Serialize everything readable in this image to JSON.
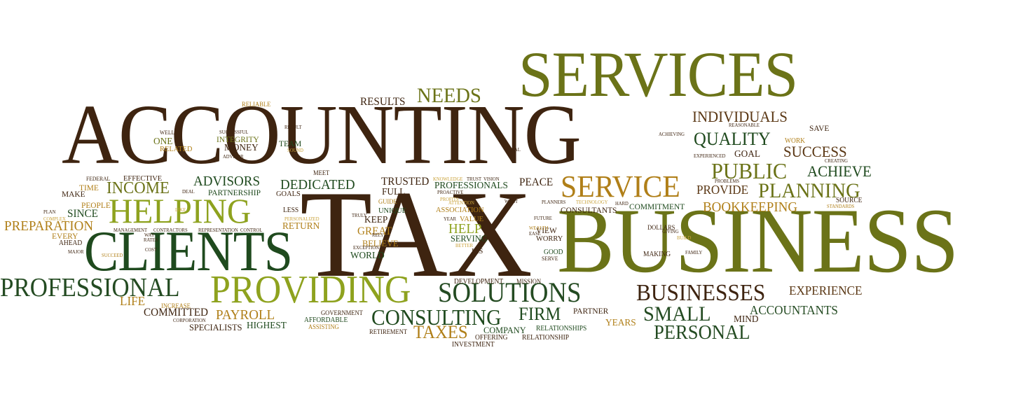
{
  "palette": {
    "dark_brown": "#3e2410",
    "olive": "#6b7318",
    "dark_green": "#1f4a1e",
    "lime": "#8ea21e",
    "gold": "#b07f18",
    "light_gold": "#c9a23a",
    "forest": "#244b22",
    "brown": "#5a3714"
  },
  "words": [
    {
      "text": "ACCOUNTING"
    },
    {
      "text": "SERVICES"
    },
    {
      "text": "TAX"
    },
    {
      "text": "BUSINESS"
    },
    {
      "text": "CLIENTS"
    },
    {
      "text": "HELPING"
    },
    {
      "text": "PROVIDING"
    },
    {
      "text": "SERVICE"
    },
    {
      "text": "SOLUTIONS"
    },
    {
      "text": "PROFESSIONAL"
    },
    {
      "text": "BUSINESSES"
    },
    {
      "text": "CONSULTING"
    },
    {
      "text": "NEEDS"
    },
    {
      "text": "PUBLIC"
    },
    {
      "text": "PLANNING"
    },
    {
      "text": "QUALITY"
    },
    {
      "text": "INDIVIDUALS"
    },
    {
      "text": "SMALL"
    },
    {
      "text": "PERSONAL"
    },
    {
      "text": "INCOME"
    },
    {
      "text": "ADVISORS"
    },
    {
      "text": "DEDICATED"
    },
    {
      "text": "SUCCESS"
    },
    {
      "text": "ACHIEVE"
    },
    {
      "text": "BOOKKEEPING"
    },
    {
      "text": "PREPARATION"
    },
    {
      "text": "TAXES"
    },
    {
      "text": "FIRM"
    },
    {
      "text": "PAYROLL"
    },
    {
      "text": "HELP"
    },
    {
      "text": "LIFE"
    },
    {
      "text": "RESULTS"
    },
    {
      "text": "EXPERIENCE"
    },
    {
      "text": "ACCOUNTANTS"
    },
    {
      "text": "PROVIDE"
    },
    {
      "text": "COMMITTED"
    },
    {
      "text": "HIGHEST"
    },
    {
      "text": "SPECIALISTS"
    },
    {
      "text": "PROFESSIONALS"
    },
    {
      "text": "TRUSTED"
    },
    {
      "text": "FULL"
    },
    {
      "text": "KEEP"
    },
    {
      "text": "GREAT"
    },
    {
      "text": "BELIEVE"
    },
    {
      "text": "WORLD"
    },
    {
      "text": "SERVING"
    },
    {
      "text": "PEACE"
    },
    {
      "text": "RETURN"
    },
    {
      "text": "PARTNERSHIP"
    },
    {
      "text": "PEOPLE"
    },
    {
      "text": "SINCE"
    },
    {
      "text": "MAKE"
    },
    {
      "text": "TIME"
    },
    {
      "text": "EVERY"
    },
    {
      "text": "AHEAD"
    },
    {
      "text": "ONE"
    },
    {
      "text": "MONEY"
    },
    {
      "text": "INTEGRITY"
    },
    {
      "text": "TEAM"
    },
    {
      "text": "GOAL"
    },
    {
      "text": "SAVE"
    },
    {
      "text": "COMMITMENT"
    },
    {
      "text": "CONSULTANTS"
    },
    {
      "text": "MIND"
    },
    {
      "text": "YEARS"
    },
    {
      "text": "PARTNER"
    },
    {
      "text": "COMPANY"
    },
    {
      "text": "OFFERING"
    },
    {
      "text": "RELATIONSHIPS"
    },
    {
      "text": "RELATIONSHIP"
    },
    {
      "text": "INVESTMENT"
    },
    {
      "text": "RETIREMENT"
    },
    {
      "text": "GOVERNMENT"
    },
    {
      "text": "AFFORDABLE"
    },
    {
      "text": "ASSISTING"
    },
    {
      "text": "DEVELOPMENT"
    },
    {
      "text": "MISSION"
    },
    {
      "text": "VIEW"
    },
    {
      "text": "WORRY"
    },
    {
      "text": "GOOD"
    },
    {
      "text": "SERVE"
    },
    {
      "text": "IRS"
    },
    {
      "text": "VALUE"
    },
    {
      "text": "ASSOCIATION"
    },
    {
      "text": "UNIQUE"
    },
    {
      "text": "LESS"
    },
    {
      "text": "GOALS"
    },
    {
      "text": "MEET"
    },
    {
      "text": "EFFECTIVE"
    },
    {
      "text": "RELATED"
    },
    {
      "text": "WELL"
    },
    {
      "text": "FEDERAL"
    },
    {
      "text": "RELIABLE"
    },
    {
      "text": "SUCCESSFUL"
    },
    {
      "text": "RESULT"
    },
    {
      "text": "ADVISOR"
    },
    {
      "text": "SOUND"
    },
    {
      "text": "LEGAL"
    },
    {
      "text": "ACHIEVING"
    },
    {
      "text": "REASONABLE"
    },
    {
      "text": "WORK"
    },
    {
      "text": "CREATING"
    },
    {
      "text": "EXPERIENCED"
    },
    {
      "text": "SOURCE"
    },
    {
      "text": "STANDARDS"
    },
    {
      "text": "PROBLEMS"
    },
    {
      "text": "HARD"
    },
    {
      "text": "PLANNERS"
    },
    {
      "text": "GIVING"
    },
    {
      "text": "BUILD"
    },
    {
      "text": "DOLLARS"
    },
    {
      "text": "MAKING"
    },
    {
      "text": "FAMILY"
    },
    {
      "text": "FUTURE"
    },
    {
      "text": "WEALTH"
    },
    {
      "text": "EASE"
    },
    {
      "text": "TECHNOLOGY"
    },
    {
      "text": "ATTENTION"
    },
    {
      "text": "LEVEL"
    },
    {
      "text": "KNOWLEDGE"
    },
    {
      "text": "TRUST"
    },
    {
      "text": "VISION"
    },
    {
      "text": "PROACTIVE"
    },
    {
      "text": "PROFITS"
    },
    {
      "text": "WANT"
    },
    {
      "text": "CORPORATION"
    },
    {
      "text": "INCREASE"
    },
    {
      "text": "COMPLEX"
    },
    {
      "text": "MAJOR"
    },
    {
      "text": "SUCCEED"
    },
    {
      "text": "COST"
    },
    {
      "text": "RATES"
    },
    {
      "text": "WAY"
    },
    {
      "text": "MANAGEMENT"
    },
    {
      "text": "CONTRACTORS"
    },
    {
      "text": "REPRESENTATION"
    },
    {
      "text": "CONTROL"
    },
    {
      "text": "PERSONALIZED"
    },
    {
      "text": "DEAL"
    },
    {
      "text": "LIKE"
    },
    {
      "text": "PLAN"
    },
    {
      "text": "TRULY"
    },
    {
      "text": "RELY"
    },
    {
      "text": "EXCEPTIONAL"
    },
    {
      "text": "YEAR"
    },
    {
      "text": "GUIDE"
    },
    {
      "text": "BETTER"
    }
  ]
}
